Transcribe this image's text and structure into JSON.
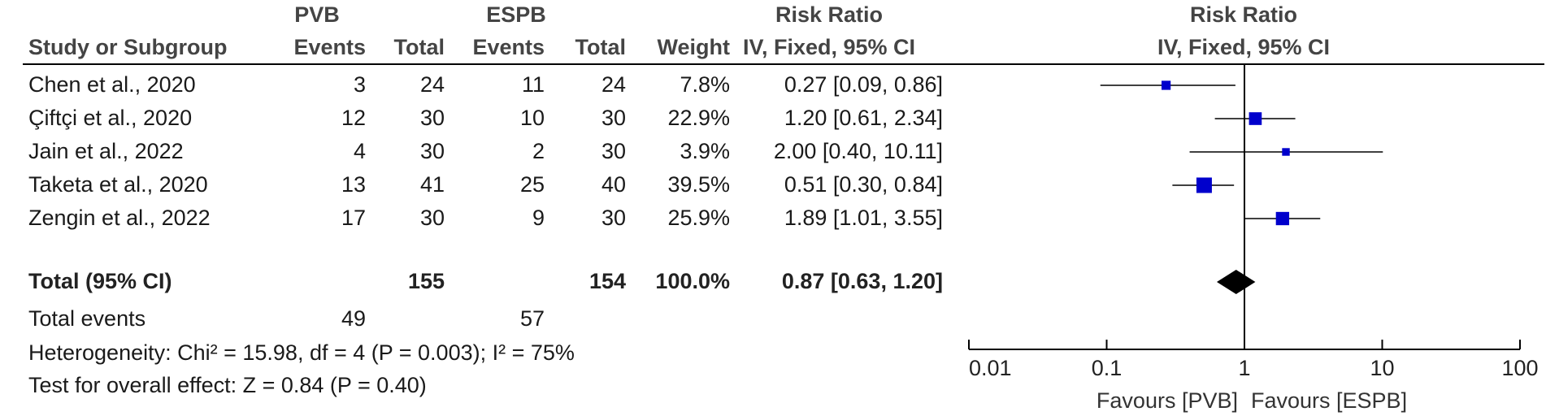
{
  "header": {
    "group1": "PVB",
    "group2": "ESPB",
    "rr_title": "Risk Ratio",
    "rr_method": "IV, Fixed, 95% CI",
    "plot_title": "Risk Ratio",
    "plot_method": "IV, Fixed, 95% CI",
    "col_study": "Study or Subgroup",
    "col_events1": "Events",
    "col_total1": "Total",
    "col_events2": "Events",
    "col_total2": "Total",
    "col_weight": "Weight"
  },
  "rows": [
    {
      "study": "Chen et al., 2020",
      "e1": "3",
      "t1": "24",
      "e2": "11",
      "t2": "24",
      "weight": "7.8%",
      "rr_text": "0.27 [0.09, 0.86]"
    },
    {
      "study": "Çiftçi et al., 2020",
      "e1": "12",
      "t1": "30",
      "e2": "10",
      "t2": "30",
      "weight": "22.9%",
      "rr_text": "1.20 [0.61, 2.34]"
    },
    {
      "study": "Jain et al., 2022",
      "e1": "4",
      "t1": "30",
      "e2": "2",
      "t2": "30",
      "weight": "3.9%",
      "rr_text": "2.00 [0.40, 10.11]"
    },
    {
      "study": "Taketa et al., 2020",
      "e1": "13",
      "t1": "41",
      "e2": "25",
      "t2": "40",
      "weight": "39.5%",
      "rr_text": "0.51 [0.30, 0.84]"
    },
    {
      "study": "Zengin et al., 2022",
      "e1": "17",
      "t1": "30",
      "e2": "9",
      "t2": "30",
      "weight": "25.9%",
      "rr_text": "1.89 [1.01, 3.55]"
    }
  ],
  "total": {
    "label": "Total (95% CI)",
    "t1": "155",
    "t2": "154",
    "weight": "100.0%",
    "rr_text": "0.87 [0.63, 1.20]"
  },
  "total_events": {
    "label": "Total events",
    "e1": "49",
    "e2": "57"
  },
  "heterogeneity": "Heterogeneity: Chi² = 15.98, df = 4 (P = 0.003); I² = 75%",
  "overall_effect": "Test for overall effect: Z = 0.84 (P = 0.40)",
  "axis": {
    "ticks": [
      0.01,
      0.1,
      1,
      10,
      100
    ],
    "tick_labels": [
      "0.01",
      "0.1",
      "1",
      "10",
      "100"
    ],
    "favours_left": "Favours [PVB]",
    "favours_right": "Favours [ESPB]"
  },
  "colors": {
    "marker": "#0000cc",
    "diamond": "#000000",
    "line": "#000000"
  },
  "chart_data": {
    "type": "forest",
    "scale": "log",
    "xlim": [
      0.01,
      100
    ],
    "null_line": 1,
    "studies": [
      {
        "name": "Chen et al., 2020",
        "rr": 0.27,
        "lo": 0.09,
        "hi": 0.86,
        "weight": 7.8
      },
      {
        "name": "Çiftçi et al., 2020",
        "rr": 1.2,
        "lo": 0.61,
        "hi": 2.34,
        "weight": 22.9
      },
      {
        "name": "Jain et al., 2022",
        "rr": 2.0,
        "lo": 0.4,
        "hi": 10.11,
        "weight": 3.9
      },
      {
        "name": "Taketa et al., 2020",
        "rr": 0.51,
        "lo": 0.3,
        "hi": 0.84,
        "weight": 39.5
      },
      {
        "name": "Zengin et al., 2022",
        "rr": 1.89,
        "lo": 1.01,
        "hi": 3.55,
        "weight": 25.9
      }
    ],
    "pooled": {
      "name": "Total (95% CI)",
      "rr": 0.87,
      "lo": 0.63,
      "hi": 1.2
    }
  }
}
